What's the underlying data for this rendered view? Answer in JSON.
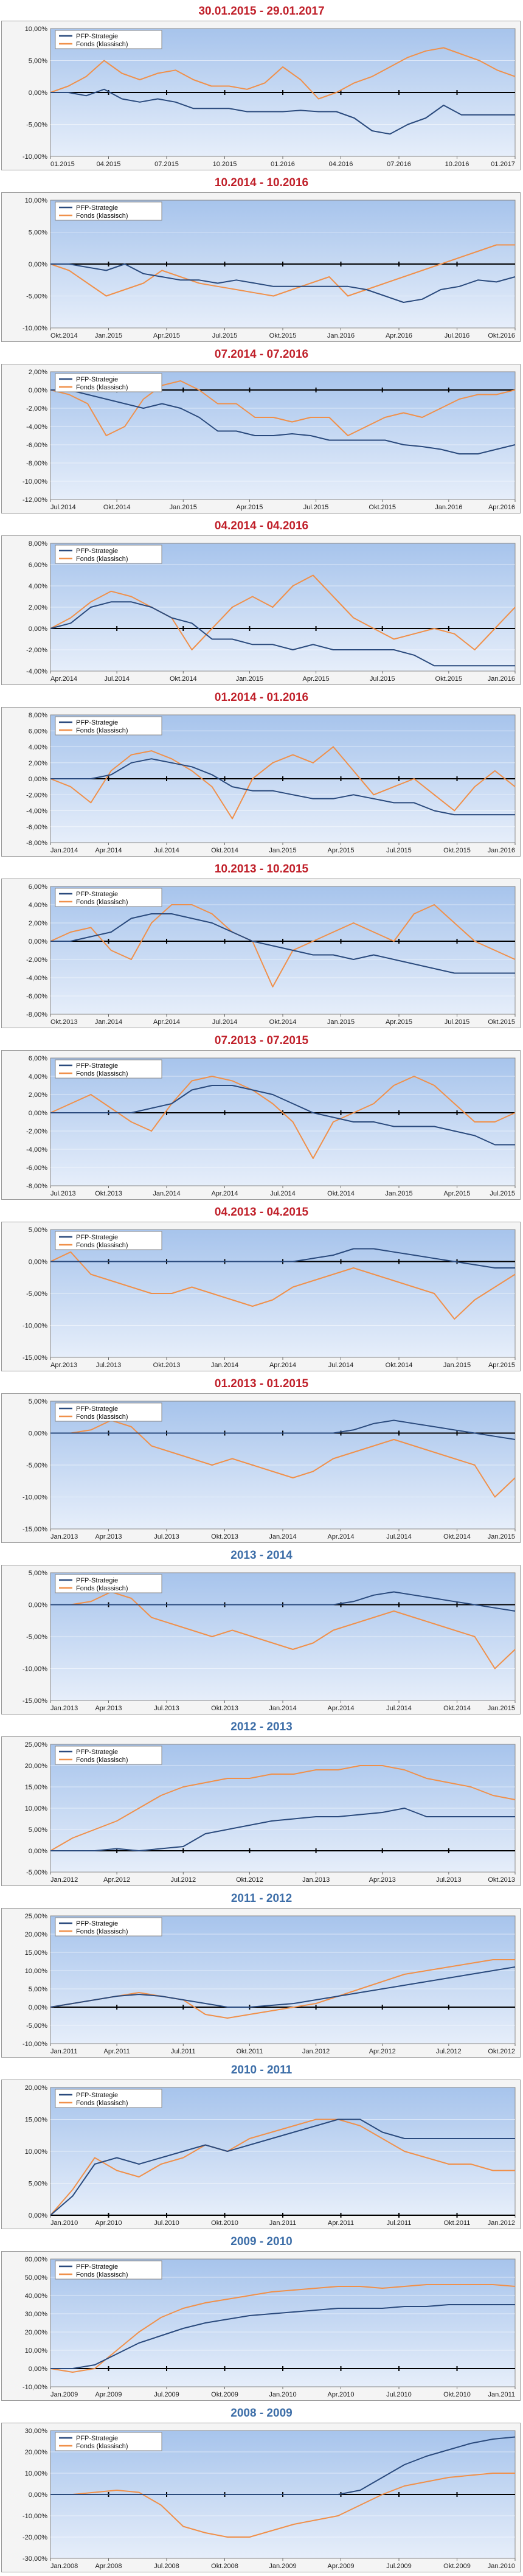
{
  "colors": {
    "pfp": "#2a4a7d",
    "fonds": "#f0904a",
    "title_red": "#c0202a",
    "title_blue": "#3d6ea8",
    "plot_top": "#a7c4ec",
    "plot_bottom": "#e6eefa"
  },
  "charts": [
    {
      "title": "30.01.2015 - 29.01.2017",
      "title_color": "red",
      "legend": [
        "PFP-Strategie",
        "Fonds (klassisch)"
      ],
      "ylim": [
        -10,
        10
      ],
      "yticks": [
        "10,00%",
        "5,00%",
        "0,00%",
        "-5,00%",
        "-10,00%"
      ],
      "xticks": [
        "01.2015",
        "04.2015",
        "07.2015",
        "10.2015",
        "01.2016",
        "04.2016",
        "07.2016",
        "10.2016",
        "01.2017"
      ],
      "pfp": [
        0,
        0,
        -0.5,
        0.5,
        -1,
        -1.5,
        -1,
        -1.5,
        -2.5,
        -2.5,
        -2.5,
        -3,
        -3,
        -3,
        -2.8,
        -3,
        -3,
        -4,
        -6,
        -6.5,
        -5,
        -4,
        -2,
        -3.5,
        -3.5,
        -3.5,
        -3.5
      ],
      "fonds": [
        0,
        1,
        2.5,
        5,
        3,
        2,
        3,
        3.5,
        2,
        1,
        1,
        0.5,
        1.5,
        4,
        2,
        -1,
        0,
        1.5,
        2.5,
        4,
        5.5,
        6.5,
        7,
        6,
        5,
        3.5,
        2.5
      ]
    },
    {
      "title": "10.2014 - 10.2016",
      "title_color": "red",
      "legend": [
        "PFP-Strategie",
        "Fonds (klassisch)"
      ],
      "ylim": [
        -10,
        10
      ],
      "yticks": [
        "10,00%",
        "5,00%",
        "0,00%",
        "-5,00%",
        "-10,00%"
      ],
      "xticks": [
        "Okt.2014",
        "Jan.2015",
        "Apr.2015",
        "Jul.2015",
        "Okt.2015",
        "Jan.2016",
        "Apr.2016",
        "Jul.2016",
        "Okt.2016"
      ],
      "pfp": [
        0,
        0,
        -0.5,
        -1,
        0,
        -1.5,
        -2,
        -2.5,
        -2.5,
        -3,
        -2.5,
        -3,
        -3.5,
        -3.5,
        -3.5,
        -3.5,
        -3.5,
        -4,
        -5,
        -6,
        -5.5,
        -4,
        -3.5,
        -2.5,
        -2.8,
        -2
      ],
      "fonds": [
        0,
        -1,
        -3,
        -5,
        -4,
        -3,
        -1,
        -2,
        -3,
        -3.5,
        -4,
        -4.5,
        -5,
        -4,
        -3,
        -2,
        -5,
        -4,
        -3,
        -2,
        -1,
        0,
        1,
        2,
        3,
        3
      ]
    },
    {
      "title": "07.2014 - 07.2016",
      "title_color": "red",
      "legend": [
        "PFP-Strategie",
        "Fonds (klassisch)"
      ],
      "ylim": [
        -12,
        2
      ],
      "yticks": [
        "2,00%",
        "0,00%",
        "-2,00%",
        "-4,00%",
        "-6,00%",
        "-8,00%",
        "-10,00%",
        "-12,00%"
      ],
      "xticks": [
        "Jul.2014",
        "Okt.2014",
        "Jan.2015",
        "Apr.2015",
        "Jul.2015",
        "Okt.2015",
        "Jan.2016",
        "Apr.2016"
      ],
      "pfp": [
        0,
        0,
        -0.5,
        -1,
        -1.5,
        -2,
        -1.5,
        -2,
        -3,
        -4.5,
        -4.5,
        -5,
        -5,
        -4.8,
        -5,
        -5.5,
        -5.5,
        -5.5,
        -5.5,
        -6,
        -6.2,
        -6.5,
        -7,
        -7,
        -6.5,
        -6
      ],
      "fonds": [
        0,
        -0.5,
        -1.5,
        -5,
        -4,
        -1,
        0.5,
        1,
        0,
        -1.5,
        -1.5,
        -3,
        -3,
        -3.5,
        -3,
        -3,
        -5,
        -4,
        -3,
        -2.5,
        -3,
        -2,
        -1,
        -0.5,
        -0.5,
        0
      ]
    },
    {
      "title": "04.2014 - 04.2016",
      "title_color": "red",
      "legend": [
        "PFP-Strategie",
        "Fonds (klassisch)"
      ],
      "ylim": [
        -4,
        8
      ],
      "yticks": [
        "8,00%",
        "6,00%",
        "4,00%",
        "2,00%",
        "0,00%",
        "-2,00%",
        "-4,00%"
      ],
      "xticks": [
        "Apr.2014",
        "Jul.2014",
        "Okt.2014",
        "Jan.2015",
        "Apr.2015",
        "Jul.2015",
        "Okt.2015",
        "Jan.2016"
      ],
      "pfp": [
        0,
        0.5,
        2,
        2.5,
        2.5,
        2,
        1,
        0.5,
        -1,
        -1,
        -1.5,
        -1.5,
        -2,
        -1.5,
        -2,
        -2,
        -2,
        -2,
        -2.5,
        -3.5,
        -3.5,
        -3.5,
        -3.5,
        -3.5
      ],
      "fonds": [
        0,
        1,
        2.5,
        3.5,
        3,
        2,
        1,
        -2,
        0,
        2,
        3,
        2,
        4,
        5,
        3,
        1,
        0,
        -1,
        -0.5,
        0,
        -0.5,
        -2,
        0,
        2
      ]
    },
    {
      "title": "01.2014 - 01.2016",
      "title_color": "red",
      "legend": [
        "PFP-Strategie",
        "Fonds (klassisch)"
      ],
      "ylim": [
        -8,
        8
      ],
      "yticks": [
        "8,00%",
        "6,00%",
        "4,00%",
        "2,00%",
        "0,00%",
        "-2,00%",
        "-4,00%",
        "-6,00%",
        "-8,00%"
      ],
      "xticks": [
        "Jan.2014",
        "Apr.2014",
        "Jul.2014",
        "Okt.2014",
        "Jan.2015",
        "Apr.2015",
        "Jul.2015",
        "Okt.2015",
        "Jan.2016"
      ],
      "pfp": [
        0,
        0,
        0,
        0.5,
        2,
        2.5,
        2,
        1.5,
        0.5,
        -1,
        -1.5,
        -1.5,
        -2,
        -2.5,
        -2.5,
        -2,
        -2.5,
        -3,
        -3,
        -4,
        -4.5,
        -4.5,
        -4.5,
        -4.5
      ],
      "fonds": [
        0,
        -1,
        -3,
        1,
        3,
        3.5,
        2.5,
        1,
        -1,
        -5,
        0,
        2,
        3,
        2,
        4,
        1,
        -2,
        -1,
        0,
        -2,
        -4,
        -1,
        1,
        -1
      ]
    },
    {
      "title": "10.2013 - 10.2015",
      "title_color": "red",
      "legend": [
        "PFP-Strategie",
        "Fonds (klassisch)"
      ],
      "ylim": [
        -8,
        6
      ],
      "yticks": [
        "6,00%",
        "4,00%",
        "2,00%",
        "0,00%",
        "-2,00%",
        "-4,00%",
        "-6,00%",
        "-8,00%"
      ],
      "xticks": [
        "Okt.2013",
        "Jan.2014",
        "Apr.2014",
        "Jul.2014",
        "Okt.2014",
        "Jan.2015",
        "Apr.2015",
        "Jul.2015",
        "Okt.2015"
      ],
      "pfp": [
        0,
        0,
        0.5,
        1,
        2.5,
        3,
        3,
        2.5,
        2,
        1,
        0,
        -0.5,
        -1,
        -1.5,
        -1.5,
        -2,
        -1.5,
        -2,
        -2.5,
        -3,
        -3.5,
        -3.5,
        -3.5,
        -3.5
      ],
      "fonds": [
        0,
        1,
        1.5,
        -1,
        -2,
        2,
        4,
        4,
        3,
        1,
        0,
        -5,
        -1,
        0,
        1,
        2,
        1,
        0,
        3,
        4,
        2,
        0,
        -1,
        -2
      ]
    },
    {
      "title": "07.2013 - 07.2015",
      "title_color": "red",
      "legend": [
        "PFP-Strategie",
        "Fonds (klassisch)"
      ],
      "ylim": [
        -8,
        6
      ],
      "yticks": [
        "6,00%",
        "4,00%",
        "2,00%",
        "0,00%",
        "-2,00%",
        "-4,00%",
        "-6,00%",
        "-8,00%"
      ],
      "xticks": [
        "Jul.2013",
        "Okt.2013",
        "Jan.2014",
        "Apr.2014",
        "Jul.2014",
        "Okt.2014",
        "Jan.2015",
        "Apr.2015",
        "Jul.2015"
      ],
      "pfp": [
        0,
        0,
        0,
        0,
        0,
        0.5,
        1,
        2.5,
        3,
        3,
        2.5,
        2,
        1,
        0,
        -0.5,
        -1,
        -1,
        -1.5,
        -1.5,
        -1.5,
        -2,
        -2.5,
        -3.5,
        -3.5
      ],
      "fonds": [
        0,
        1,
        2,
        0.5,
        -1,
        -2,
        1,
        3.5,
        4,
        3.5,
        2.5,
        1,
        -1,
        -5,
        -1,
        0,
        1,
        3,
        4,
        3,
        1,
        -1,
        -1,
        0
      ]
    },
    {
      "title": "04.2013 - 04.2015",
      "title_color": "red",
      "legend": [
        "PFP-Strategie",
        "Fonds (klassisch)"
      ],
      "ylim": [
        -15,
        5
      ],
      "yticks": [
        "5,00%",
        "0,00%",
        "-5,00%",
        "-10,00%",
        "-15,00%"
      ],
      "xticks": [
        "Apr.2013",
        "Jul.2013",
        "Okt.2013",
        "Jan.2014",
        "Apr.2014",
        "Jul.2014",
        "Okt.2014",
        "Jan.2015",
        "Apr.2015"
      ],
      "pfp": [
        0,
        0,
        0,
        0,
        0,
        0,
        0,
        0,
        0,
        0,
        0,
        0,
        0,
        0.5,
        1,
        2,
        2,
        1.5,
        1,
        0.5,
        0,
        -0.5,
        -1,
        -1
      ],
      "fonds": [
        0,
        1.5,
        -2,
        -3,
        -4,
        -5,
        -5,
        -4,
        -5,
        -6,
        -7,
        -6,
        -4,
        -3,
        -2,
        -1,
        -2,
        -3,
        -4,
        -5,
        -9,
        -6,
        -4,
        -2
      ]
    },
    {
      "title": "01.2013 - 01.2015",
      "title_color": "red",
      "legend": [
        "PFP-Strategie",
        "Fonds (klassisch)"
      ],
      "ylim": [
        -15,
        5
      ],
      "yticks": [
        "5,00%",
        "0,00%",
        "-5,00%",
        "-10,00%",
        "-15,00%"
      ],
      "xticks": [
        "Jan.2013",
        "Apr.2013",
        "Jul.2013",
        "Okt.2013",
        "Jan.2014",
        "Apr.2014",
        "Jul.2014",
        "Okt.2014",
        "Jan.2015"
      ],
      "pfp": [
        0,
        0,
        0,
        0,
        0,
        0,
        0,
        0,
        0,
        0,
        0,
        0,
        0,
        0,
        0,
        0.5,
        1.5,
        2,
        1.5,
        1,
        0.5,
        0,
        -0.5,
        -1
      ],
      "fonds": [
        0,
        0,
        0.5,
        2,
        1,
        -2,
        -3,
        -4,
        -5,
        -4,
        -5,
        -6,
        -7,
        -6,
        -4,
        -3,
        -2,
        -1,
        -2,
        -3,
        -4,
        -5,
        -10,
        -7
      ]
    },
    {
      "title": "2013 - 2014",
      "title_color": "blue",
      "legend": [
        "PFP-Strategie",
        "Fonds (klassisch)"
      ],
      "ylim": [
        -15,
        5
      ],
      "yticks": [
        "5,00%",
        "0,00%",
        "-5,00%",
        "-10,00%",
        "-15,00%"
      ],
      "xticks": [
        "Jan.2013",
        "Apr.2013",
        "Jul.2013",
        "Okt.2013",
        "Jan.2014",
        "Apr.2014",
        "Jul.2014",
        "Okt.2014",
        "Jan.2015"
      ],
      "pfp": [
        0,
        0,
        0,
        0,
        0,
        0,
        0,
        0,
        0,
        0,
        0,
        0,
        0,
        0,
        0,
        0.5,
        1.5,
        2,
        1.5,
        1,
        0.5,
        0,
        -0.5,
        -1
      ],
      "fonds": [
        0,
        0,
        0.5,
        2,
        1,
        -2,
        -3,
        -4,
        -5,
        -4,
        -5,
        -6,
        -7,
        -6,
        -4,
        -3,
        -2,
        -1,
        -2,
        -3,
        -4,
        -5,
        -10,
        -7
      ]
    },
    {
      "title": "2012 - 2013",
      "title_color": "blue",
      "legend": [
        "PFP-Strategie",
        "Fonds (klassisch)"
      ],
      "ylim": [
        -5,
        25
      ],
      "yticks": [
        "25,00%",
        "20,00%",
        "15,00%",
        "10,00%",
        "5,00%",
        "0,00%",
        "-5,00%"
      ],
      "xticks": [
        "Jan.2012",
        "Apr.2012",
        "Jul.2012",
        "Okt.2012",
        "Jan.2013",
        "Apr.2013",
        "Jul.2013",
        "Okt.2013"
      ],
      "pfp": [
        0,
        0,
        0,
        0.5,
        0,
        0.5,
        1,
        4,
        5,
        6,
        7,
        7.5,
        8,
        8,
        8.5,
        9,
        10,
        8,
        8,
        8,
        8,
        8
      ],
      "fonds": [
        0,
        3,
        5,
        7,
        10,
        13,
        15,
        16,
        17,
        17,
        18,
        18,
        19,
        19,
        20,
        20,
        19,
        17,
        16,
        15,
        13,
        12
      ]
    },
    {
      "title": "2011 - 2012",
      "title_color": "blue",
      "legend": [
        "PFP-Strategie",
        "Fonds (klassisch)"
      ],
      "ylim": [
        -10,
        25
      ],
      "yticks": [
        "25,00%",
        "20,00%",
        "15,00%",
        "10,00%",
        "5,00%",
        "0,00%",
        "-5,00%",
        "-10,00%"
      ],
      "xticks": [
        "Jan.2011",
        "Apr.2011",
        "Jul.2011",
        "Okt.2011",
        "Jan.2012",
        "Apr.2012",
        "Jul.2012",
        "Okt.2012"
      ],
      "pfp": [
        0,
        1,
        2,
        3,
        3.5,
        3,
        2,
        1,
        0,
        0,
        0.5,
        1,
        2,
        3,
        4,
        5,
        6,
        7,
        8,
        9,
        10,
        11
      ],
      "fonds": [
        0,
        1,
        2,
        3,
        4,
        3,
        2,
        -2,
        -3,
        -2,
        -1,
        0,
        1,
        3,
        5,
        7,
        9,
        10,
        11,
        12,
        13,
        13
      ]
    },
    {
      "title": "2010 - 2011",
      "title_color": "blue",
      "legend": [
        "PFP-Strategie",
        "Fonds (klassisch)"
      ],
      "ylim": [
        0,
        20
      ],
      "yticks": [
        "20,00%",
        "15,00%",
        "10,00%",
        "5,00%",
        "0,00%"
      ],
      "xticks": [
        "Jan.2010",
        "Apr.2010",
        "Jul.2010",
        "Okt.2010",
        "Jan.2011",
        "Apr.2011",
        "Jul.2011",
        "Okt.2011",
        "Jan.2012"
      ],
      "pfp": [
        0,
        3,
        8,
        9,
        8,
        9,
        10,
        11,
        10,
        11,
        12,
        13,
        14,
        15,
        15,
        13,
        12,
        12,
        12,
        12,
        12,
        12
      ],
      "fonds": [
        0,
        4,
        9,
        7,
        6,
        8,
        9,
        11,
        10,
        12,
        13,
        14,
        15,
        15,
        14,
        12,
        10,
        9,
        8,
        8,
        7,
        7
      ]
    },
    {
      "title": "2009 - 2010",
      "title_color": "blue",
      "legend": [
        "PFP-Strategie",
        "Fonds (klassisch)"
      ],
      "ylim": [
        -10,
        60
      ],
      "yticks": [
        "60,00%",
        "50,00%",
        "40,00%",
        "30,00%",
        "20,00%",
        "10,00%",
        "0,00%",
        "-10,00%"
      ],
      "xticks": [
        "Jan.2009",
        "Apr.2009",
        "Jul.2009",
        "Okt.2009",
        "Jan.2010",
        "Apr.2010",
        "Jul.2010",
        "Okt.2010",
        "Jan.2011"
      ],
      "pfp": [
        0,
        0,
        2,
        8,
        14,
        18,
        22,
        25,
        27,
        29,
        30,
        31,
        32,
        33,
        33,
        33,
        34,
        34,
        35,
        35,
        35,
        35
      ],
      "fonds": [
        0,
        -2,
        0,
        10,
        20,
        28,
        33,
        36,
        38,
        40,
        42,
        43,
        44,
        45,
        45,
        44,
        45,
        46,
        46,
        46,
        46,
        45
      ]
    },
    {
      "title": "2008 - 2009",
      "title_color": "blue",
      "legend": [
        "PFP-Strategie",
        "Fonds (klassisch)"
      ],
      "ylim": [
        -30,
        30
      ],
      "yticks": [
        "30,00%",
        "20,00%",
        "10,00%",
        "0,00%",
        "-10,00%",
        "-20,00%",
        "-30,00%"
      ],
      "xticks": [
        "Jan.2008",
        "Apr.2008",
        "Jul.2008",
        "Okt.2008",
        "Jan.2009",
        "Apr.2009",
        "Jul.2009",
        "Okt.2009",
        "Jan.2010"
      ],
      "pfp": [
        0,
        0,
        0,
        0,
        0,
        0,
        0,
        0,
        0,
        0,
        0,
        0,
        0,
        0,
        2,
        8,
        14,
        18,
        21,
        24,
        26,
        27
      ],
      "fonds": [
        0,
        0,
        1,
        2,
        1,
        -5,
        -15,
        -18,
        -20,
        -20,
        -17,
        -14,
        -12,
        -10,
        -5,
        0,
        4,
        6,
        8,
        9,
        10,
        10
      ]
    }
  ]
}
